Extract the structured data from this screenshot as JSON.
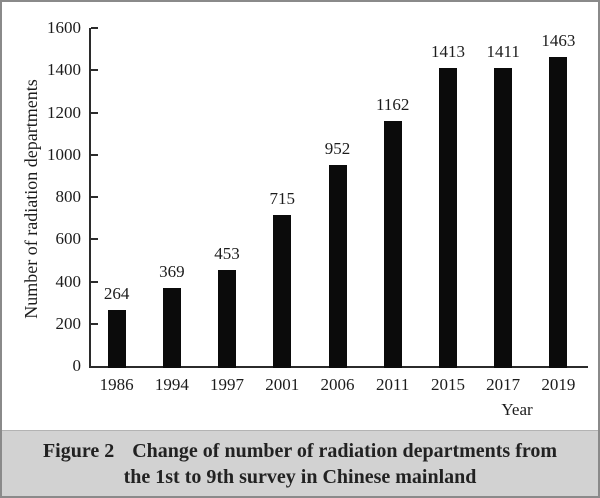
{
  "figure": {
    "caption_label": "Figure 2",
    "caption_text_line1": "Change of number of radiation departments from",
    "caption_text_line2": "the 1st to 9th survey in Chinese mainland"
  },
  "chart_data": {
    "type": "bar",
    "categories": [
      "1986",
      "1994",
      "1997",
      "2001",
      "2006",
      "2011",
      "2015",
      "2017",
      "2019"
    ],
    "values": [
      264,
      369,
      453,
      715,
      952,
      1162,
      1413,
      1411,
      1463
    ],
    "title": "",
    "xlabel": "Year",
    "ylabel": "Number of radiation departments",
    "ylim": [
      0,
      1600
    ],
    "yticks": [
      0,
      200,
      400,
      600,
      800,
      1000,
      1200,
      1400,
      1600
    ],
    "grid": false,
    "legend": "none",
    "value_labels": true,
    "bar_color": "#0b0b0b"
  },
  "colors": {
    "bar": "#0b0b0b",
    "axis": "#2b2b2b",
    "text": "#1c1c1c",
    "caption_bg": "#d2d2d2",
    "outer_border": "#8a8a8a"
  }
}
